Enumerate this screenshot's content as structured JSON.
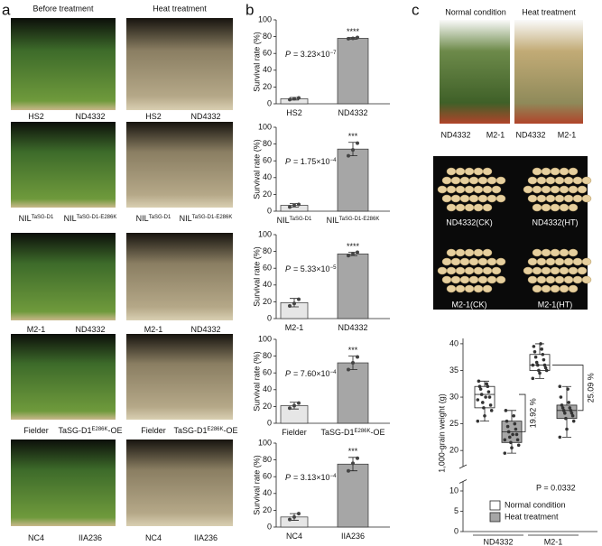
{
  "panel_labels": [
    "a",
    "b",
    "c"
  ],
  "panel_a": {
    "column_titles": [
      "Before treatment",
      "Heat treatment"
    ],
    "captions": [
      [
        [
          {
            "text": "HS2"
          }
        ],
        [
          {
            "text": "ND4332"
          }
        ]
      ],
      [
        [
          {
            "text": "NIL"
          },
          {
            "text": "TaSG-D1",
            "sup": true
          }
        ],
        [
          {
            "text": "NIL"
          },
          {
            "text": "TaSG-D1-E286K",
            "sup": true
          }
        ]
      ],
      [
        [
          {
            "text": "M2-1"
          }
        ],
        [
          {
            "text": "ND4332"
          }
        ]
      ],
      [
        [
          {
            "text": "Fielder"
          }
        ],
        [
          {
            "text": "TaSG-D1"
          },
          {
            "text": "E286K",
            "sup": true
          },
          {
            "text": "-OE"
          }
        ]
      ],
      [
        [
          {
            "text": "NC4"
          }
        ],
        [
          {
            "text": "IIA236"
          }
        ]
      ]
    ]
  },
  "panel_c": {
    "column_titles": [
      "Normal condition",
      "Heat treatment"
    ],
    "photo_labels": [
      "ND4332",
      "M2-1",
      "ND4332",
      "M2-1"
    ],
    "grain_labels": [
      "ND4332(CK)",
      "ND4332(HT)",
      "M2-1(CK)",
      "M2-1(HT)"
    ]
  },
  "chart_data": [
    {
      "type": "bar",
      "ylabel": "Survival rate (%)",
      "categories": [
        [
          {
            "text": "HS2"
          }
        ],
        [
          {
            "text": "ND4332"
          }
        ]
      ],
      "values": [
        6,
        78
      ],
      "errors": [
        1.5,
        1
      ],
      "points": [
        [
          5,
          6,
          7
        ],
        [
          77.5,
          78,
          79
        ]
      ],
      "colors": [
        "#e6e6e6",
        "#a6a6a6"
      ],
      "ylim": [
        0,
        100
      ],
      "yticks": [
        0,
        20,
        40,
        60,
        80,
        100
      ],
      "p_symbol": "P",
      "p_text": "= 3.23×10",
      "p_exp": "−7",
      "significance": "****"
    },
    {
      "type": "bar",
      "ylabel": "Survival rate (%)",
      "categories": [
        [
          {
            "text": "NIL"
          },
          {
            "text": "TaSG-D1",
            "sup": true
          }
        ],
        [
          {
            "text": "NIL"
          },
          {
            "text": "TaSG-D1-E286K",
            "sup": true
          }
        ]
      ],
      "values": [
        7,
        74
      ],
      "errors": [
        2,
        8
      ],
      "points": [
        [
          5,
          7,
          8
        ],
        [
          66,
          73,
          81
        ]
      ],
      "colors": [
        "#e6e6e6",
        "#a6a6a6"
      ],
      "ylim": [
        0,
        100
      ],
      "yticks": [
        0,
        20,
        40,
        60,
        80,
        100
      ],
      "p_symbol": "P",
      "p_text": "= 1.75×10",
      "p_exp": "−4",
      "significance": "***"
    },
    {
      "type": "bar",
      "ylabel": "Survival rate (%)",
      "categories": [
        [
          {
            "text": "M2-1"
          }
        ],
        [
          {
            "text": "ND4332"
          }
        ]
      ],
      "values": [
        19,
        77
      ],
      "errors": [
        5,
        2
      ],
      "points": [
        [
          15,
          18,
          23
        ],
        [
          75,
          77,
          79
        ]
      ],
      "colors": [
        "#e6e6e6",
        "#a6a6a6"
      ],
      "ylim": [
        0,
        100
      ],
      "yticks": [
        0,
        20,
        40,
        60,
        80,
        100
      ],
      "p_symbol": "P",
      "p_text": "= 5.33×10",
      "p_exp": "−5",
      "significance": "****"
    },
    {
      "type": "bar",
      "ylabel": "Survival rate (%)",
      "categories": [
        [
          {
            "text": "Fielder"
          }
        ],
        [
          {
            "text": "TaSG-D1"
          },
          {
            "text": "E286K",
            "sup": true
          },
          {
            "text": "-OE"
          }
        ]
      ],
      "values": [
        21,
        72
      ],
      "errors": [
        4,
        8
      ],
      "points": [
        [
          18,
          21,
          24
        ],
        [
          64,
          72,
          79
        ]
      ],
      "colors": [
        "#e6e6e6",
        "#a6a6a6"
      ],
      "ylim": [
        0,
        100
      ],
      "yticks": [
        0,
        20,
        40,
        60,
        80,
        100
      ],
      "p_symbol": "P",
      "p_text": "= 7.60×10",
      "p_exp": "−4",
      "significance": "***"
    },
    {
      "type": "bar",
      "ylabel": "Survival rate (%)",
      "categories": [
        [
          {
            "text": "NC4"
          }
        ],
        [
          {
            "text": "IIA236"
          }
        ]
      ],
      "values": [
        12,
        75
      ],
      "errors": [
        4,
        8
      ],
      "points": [
        [
          9,
          12,
          16
        ],
        [
          67,
          76,
          82
        ]
      ],
      "colors": [
        "#e6e6e6",
        "#a6a6a6"
      ],
      "ylim": [
        0,
        100
      ],
      "yticks": [
        0,
        20,
        40,
        60,
        80,
        100
      ],
      "p_symbol": "P",
      "p_text": "= 3.13×10",
      "p_exp": "−4",
      "significance": "***"
    },
    {
      "type": "box",
      "ylabel": "1,000-grain weight (g)",
      "categories": [
        "ND4332",
        "M2-1"
      ],
      "ylim": [
        0,
        41
      ],
      "axis_break": [
        11,
        18
      ],
      "yticks": [
        0,
        5,
        10,
        20,
        25,
        30,
        35,
        40
      ],
      "series": [
        {
          "name": "Normal condition",
          "color": "#ffffff",
          "boxes": [
            {
              "min": 25.5,
              "q1": 28,
              "median": 30.5,
              "q3": 32,
              "max": 33,
              "points": [
                25.5,
                26.5,
                27.5,
                28,
                28.5,
                29,
                30,
                30.5,
                31,
                31.5,
                32,
                32,
                32.5,
                33,
                30,
                29.5
              ]
            },
            {
              "min": 33.5,
              "q1": 35,
              "median": 36,
              "q3": 38,
              "max": 40,
              "points": [
                33.5,
                34.5,
                35,
                35,
                35.5,
                36,
                36,
                36.5,
                37,
                37.5,
                38,
                38.5,
                39,
                39.5,
                40,
                36
              ]
            }
          ]
        },
        {
          "name": "Heat treatment",
          "color": "#a6a6a6",
          "boxes": [
            {
              "min": 19.5,
              "q1": 21.5,
              "median": 23.5,
              "q3": 25.5,
              "max": 27.5,
              "points": [
                19.5,
                20.5,
                21,
                21.5,
                22,
                22.5,
                23,
                23.5,
                24,
                24.5,
                25,
                25.5,
                26.5,
                27.5,
                23,
                22
              ]
            },
            {
              "min": 22.5,
              "q1": 26,
              "median": 27.5,
              "q3": 28.5,
              "max": 32,
              "points": [
                22.5,
                24,
                25.5,
                26,
                26.5,
                27,
                27,
                27.5,
                27.5,
                28,
                28,
                28.5,
                29,
                30,
                31.5,
                32
              ]
            }
          ]
        }
      ],
      "differences": [
        "19.92 %",
        "25.09 %"
      ],
      "p_value": "P = 0.0332"
    }
  ]
}
